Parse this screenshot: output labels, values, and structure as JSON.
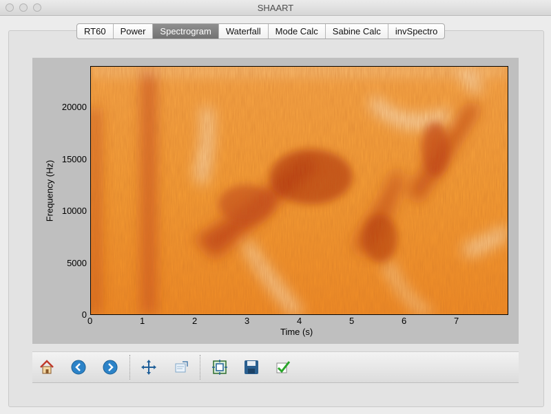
{
  "window": {
    "title": "SHAART"
  },
  "tabs": [
    {
      "label": "RT60"
    },
    {
      "label": "Power"
    },
    {
      "label": "Spectrogram",
      "active": true
    },
    {
      "label": "Waterfall"
    },
    {
      "label": "Mode Calc"
    },
    {
      "label": "Sabine Calc"
    },
    {
      "label": "invSpectro"
    }
  ],
  "chart_data": {
    "type": "heatmap",
    "xlabel": "Time (s)",
    "ylabel": "Frequency (Hz)",
    "xlim": [
      0,
      8
    ],
    "ylim": [
      0,
      24000
    ],
    "xticks": [
      "0",
      "1",
      "2",
      "3",
      "4",
      "5",
      "6",
      "7"
    ],
    "yticks": [
      "0",
      "5000",
      "10000",
      "15000",
      "20000"
    ],
    "colormap": "orange",
    "colors": {
      "low": "#f7e0c0",
      "mid": "#f29a34",
      "high": "#b4360f"
    }
  },
  "toolbar": {
    "tools": [
      {
        "icon": "home-icon"
      },
      {
        "icon": "back-icon"
      },
      {
        "icon": "forward-icon"
      },
      {
        "icon": "pan-icon"
      },
      {
        "icon": "zoom-icon"
      },
      {
        "icon": "configure-subplots-icon"
      },
      {
        "icon": "save-icon"
      },
      {
        "icon": "apply-checkmark-icon"
      }
    ]
  }
}
